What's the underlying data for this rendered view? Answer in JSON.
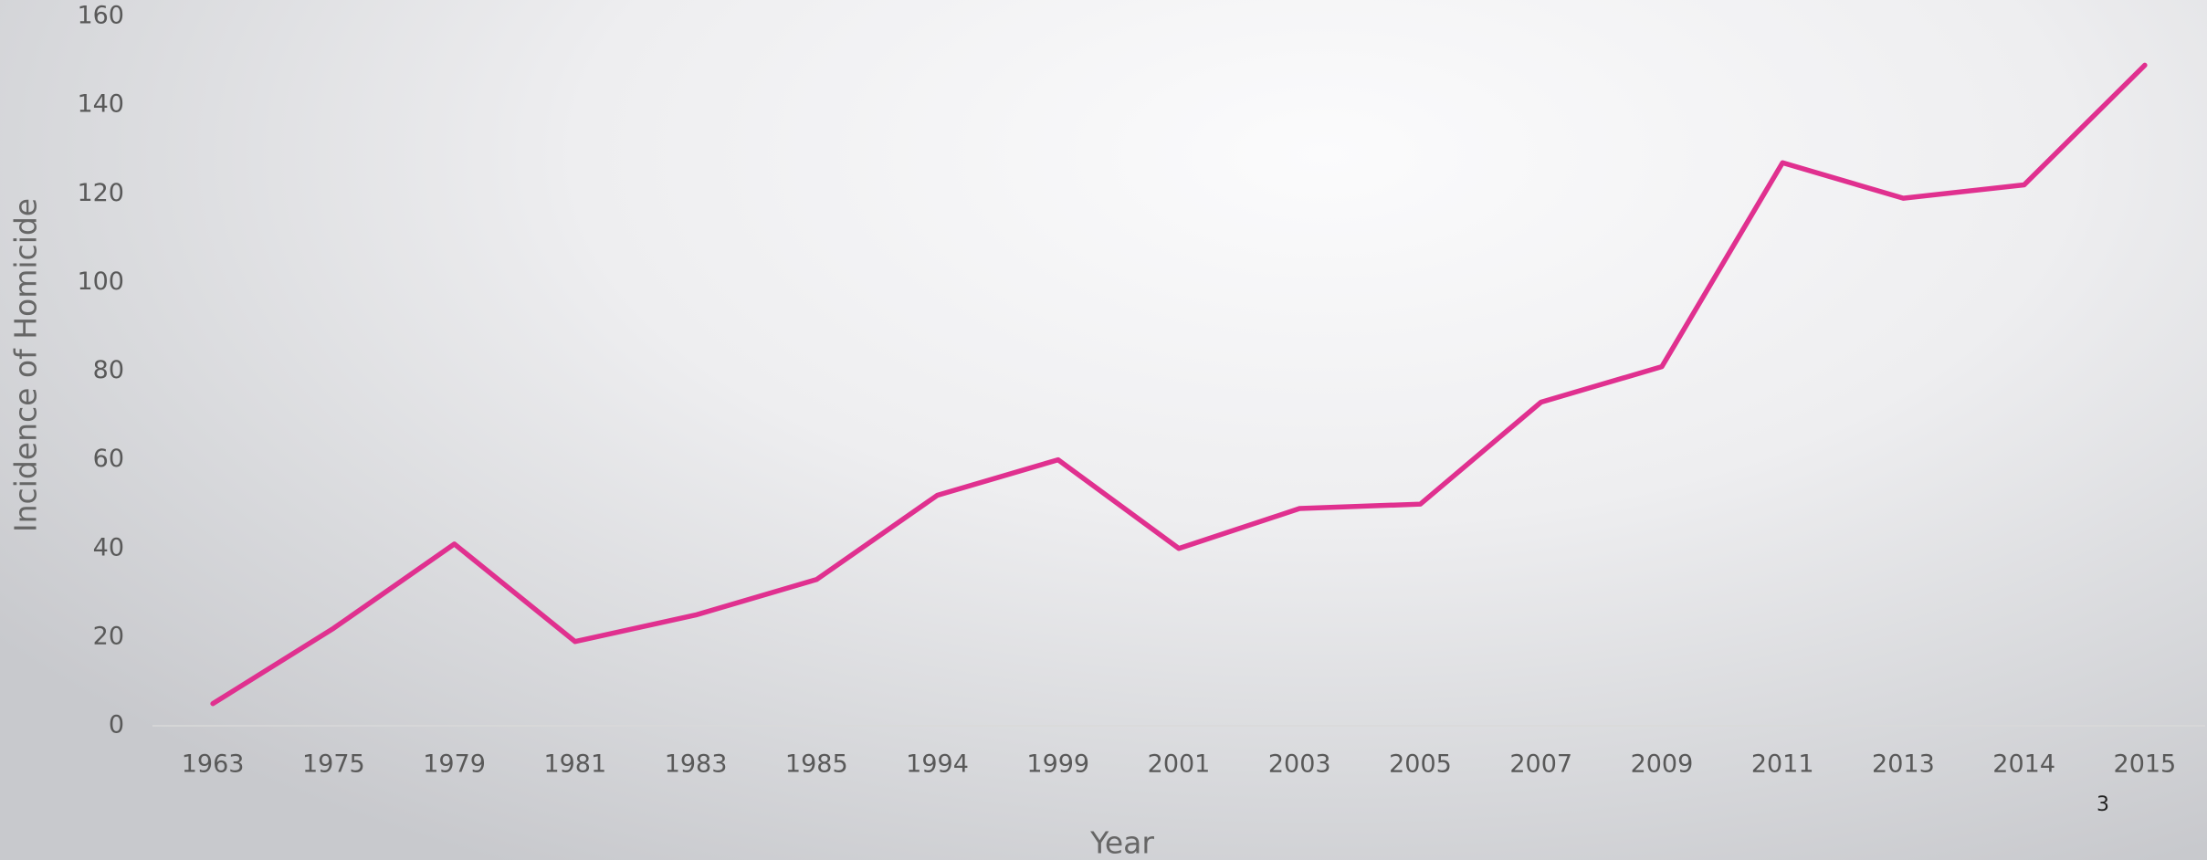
{
  "chart_data": {
    "type": "line",
    "x_label": "Year",
    "y_label": "Incidence of Homicide",
    "categories": [
      "1963",
      "1975",
      "1979",
      "1981",
      "1983",
      "1985",
      "1994",
      "1999",
      "2001",
      "2003",
      "2005",
      "2007",
      "2009",
      "2011",
      "2013",
      "2014",
      "2015"
    ],
    "series": [
      {
        "color": "#e0308f",
        "values": [
          5,
          22,
          41,
          19,
          25,
          33,
          52,
          60,
          40,
          49,
          50,
          73,
          81,
          127,
          119,
          122,
          149
        ]
      }
    ],
    "ylim": [
      0,
      160
    ],
    "yticks": [
      0,
      20,
      40,
      60,
      80,
      100,
      120,
      140,
      160
    ],
    "grid": false
  },
  "page_number": "3"
}
